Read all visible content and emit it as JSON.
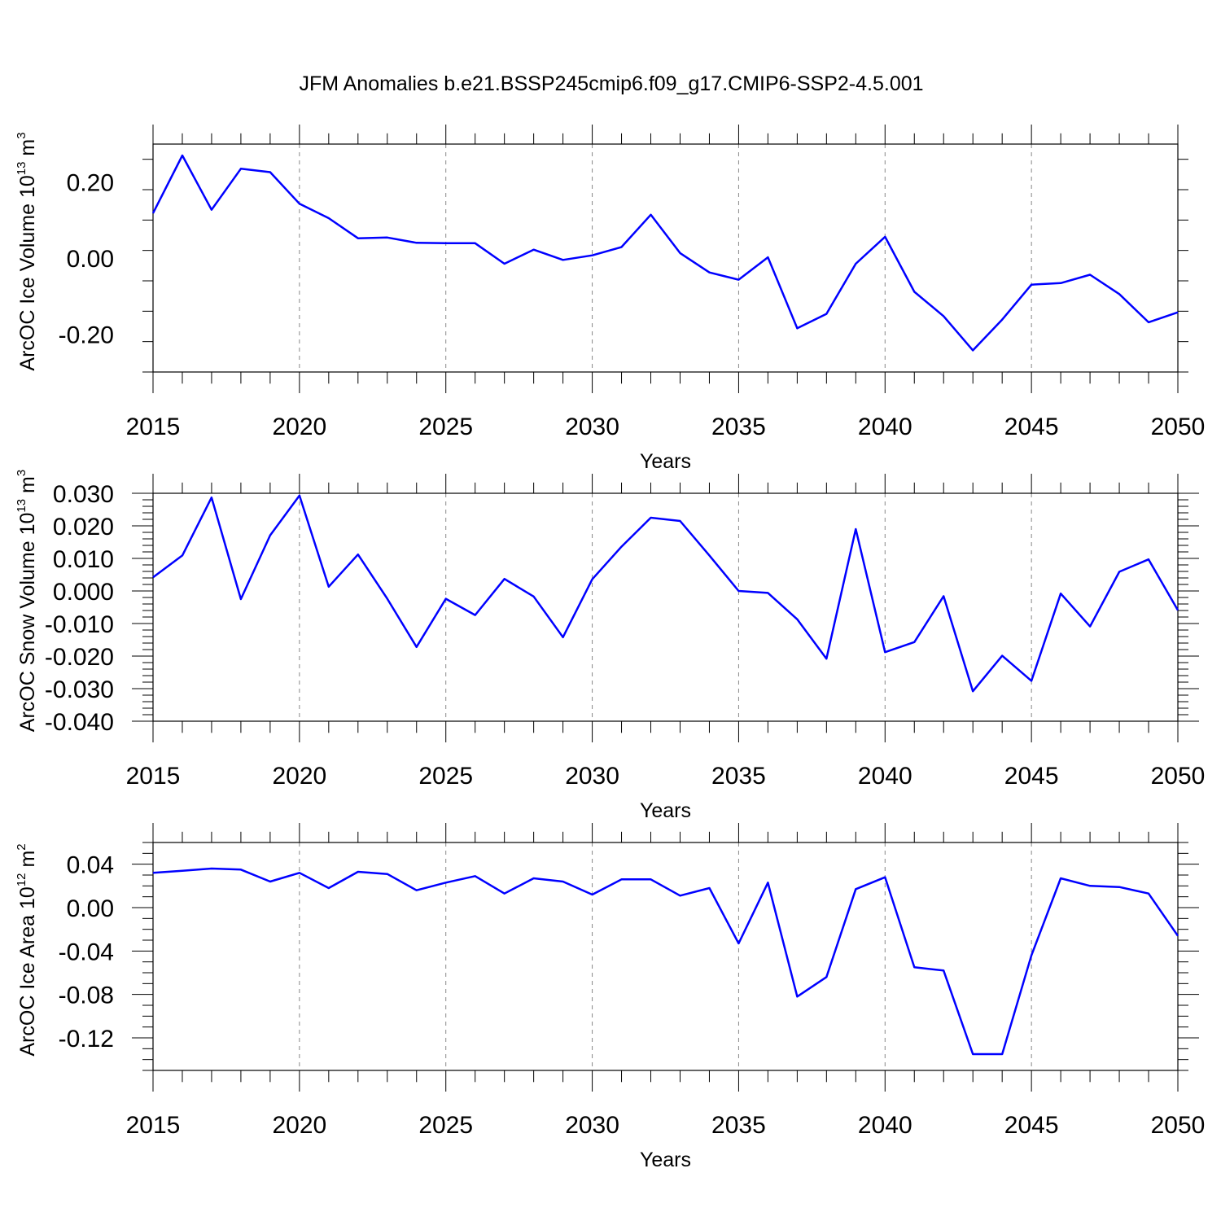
{
  "title": "JFM Anomalies b.e21.BSSP245cmip6.f09_g17.CMIP6-SSP2-4.5.001",
  "colors": {
    "line": "#0000ff",
    "frame": "#000000",
    "grid": "#888888"
  },
  "chart_data": [
    {
      "type": "line",
      "ylabel_main": "ArcOC Ice Volume 10",
      "ylabel_exp": "13",
      "ylabel_unit": " m",
      "ylabel_unit_exp": "3",
      "xlabel": "Years",
      "xlim": [
        2015,
        2050
      ],
      "ylim": [
        -0.3,
        0.3
      ],
      "yticks": [
        -0.2,
        0.0,
        0.2
      ],
      "ytick_labels": [
        "-0.20",
        "0.00",
        "0.20"
      ],
      "xticks": [
        2015,
        2020,
        2025,
        2030,
        2035,
        2040,
        2045,
        2050
      ],
      "xtick_labels": [
        "2015",
        "2020",
        "2025",
        "2030",
        "2035",
        "2040",
        "2045",
        "2050"
      ],
      "grid_x": true,
      "x": [
        2015,
        2016,
        2017,
        2018,
        2019,
        2020,
        2021,
        2022,
        2023,
        2024,
        2025,
        2026,
        2027,
        2028,
        2029,
        2030,
        2031,
        2032,
        2033,
        2034,
        2035,
        2036,
        2037,
        2038,
        2039,
        2040,
        2041,
        2042,
        2043,
        2044,
        2045,
        2046,
        2047,
        2048,
        2049,
        2050
      ],
      "y": [
        0.118,
        0.27,
        0.127,
        0.235,
        0.226,
        0.143,
        0.105,
        0.052,
        0.054,
        0.04,
        0.039,
        0.039,
        -0.015,
        0.022,
        -0.005,
        0.007,
        0.029,
        0.114,
        0.013,
        -0.038,
        -0.057,
        0.002,
        -0.185,
        -0.147,
        -0.015,
        0.056,
        -0.089,
        -0.153,
        -0.243,
        -0.162,
        -0.07,
        -0.066,
        -0.044,
        -0.095,
        -0.169,
        -0.143
      ]
    },
    {
      "type": "line",
      "ylabel_main": "ArcOC Snow Volume 10",
      "ylabel_exp": "13",
      "ylabel_unit": " m",
      "ylabel_unit_exp": "3",
      "xlabel": "Years",
      "xlim": [
        2015,
        2050
      ],
      "ylim": [
        -0.04,
        0.03
      ],
      "yticks": [
        -0.04,
        -0.03,
        -0.02,
        -0.01,
        0.0,
        0.01,
        0.02,
        0.03
      ],
      "ytick_labels": [
        "-0.040",
        "-0.030",
        "-0.020",
        "-0.010",
        "0.000",
        "0.010",
        "0.020",
        "0.030"
      ],
      "xticks": [
        2015,
        2020,
        2025,
        2030,
        2035,
        2040,
        2045,
        2050
      ],
      "xtick_labels": [
        "2015",
        "2020",
        "2025",
        "2030",
        "2035",
        "2040",
        "2045",
        "2050"
      ],
      "grid_x": true,
      "x": [
        2015,
        2016,
        2017,
        2018,
        2019,
        2020,
        2021,
        2022,
        2023,
        2024,
        2025,
        2026,
        2027,
        2028,
        2029,
        2030,
        2031,
        2032,
        2033,
        2034,
        2035,
        2036,
        2037,
        2038,
        2039,
        2040,
        2041,
        2042,
        2043,
        2044,
        2045,
        2046,
        2047,
        2048,
        2049,
        2050
      ],
      "y": [
        0.0042,
        0.0109,
        0.0287,
        -0.0025,
        0.0171,
        0.0293,
        0.0013,
        0.0112,
        -0.0024,
        -0.0172,
        -0.0024,
        -0.0074,
        0.0037,
        -0.0017,
        -0.0142,
        0.0036,
        0.0136,
        0.0225,
        0.0215,
        0.0109,
        0.0,
        -0.0006,
        -0.0087,
        -0.0208,
        0.019,
        -0.0188,
        -0.0157,
        -0.0016,
        -0.0308,
        -0.0199,
        -0.0276,
        -0.0008,
        -0.0109,
        0.0059,
        0.0097,
        -0.0059
      ]
    },
    {
      "type": "line",
      "ylabel_main": "ArcOC Ice Area 10",
      "ylabel_exp": "12",
      "ylabel_unit": " m",
      "ylabel_unit_exp": "2",
      "xlabel": "Years",
      "xlim": [
        2015,
        2050
      ],
      "ylim": [
        -0.15,
        0.06
      ],
      "yticks": [
        -0.12,
        -0.08,
        -0.04,
        0.0,
        0.04
      ],
      "ytick_labels": [
        "-0.12",
        "-0.08",
        "-0.04",
        "0.00",
        "0.04"
      ],
      "xticks": [
        2015,
        2020,
        2025,
        2030,
        2035,
        2040,
        2045,
        2050
      ],
      "xtick_labels": [
        "2015",
        "2020",
        "2025",
        "2030",
        "2035",
        "2040",
        "2045",
        "2050"
      ],
      "grid_x": true,
      "x": [
        2015,
        2016,
        2017,
        2018,
        2019,
        2020,
        2021,
        2022,
        2023,
        2024,
        2025,
        2026,
        2027,
        2028,
        2029,
        2030,
        2031,
        2032,
        2033,
        2034,
        2035,
        2036,
        2037,
        2038,
        2039,
        2040,
        2041,
        2042,
        2043,
        2044,
        2045,
        2046,
        2047,
        2048,
        2049,
        2050
      ],
      "y": [
        0.032,
        0.034,
        0.036,
        0.035,
        0.024,
        0.032,
        0.018,
        0.033,
        0.031,
        0.016,
        0.023,
        0.029,
        0.013,
        0.027,
        0.024,
        0.012,
        0.026,
        0.026,
        0.011,
        0.018,
        -0.033,
        0.023,
        -0.082,
        -0.064,
        0.017,
        0.028,
        -0.055,
        -0.058,
        -0.135,
        -0.135,
        -0.044,
        0.027,
        0.02,
        0.019,
        0.013,
        -0.026
      ]
    }
  ]
}
